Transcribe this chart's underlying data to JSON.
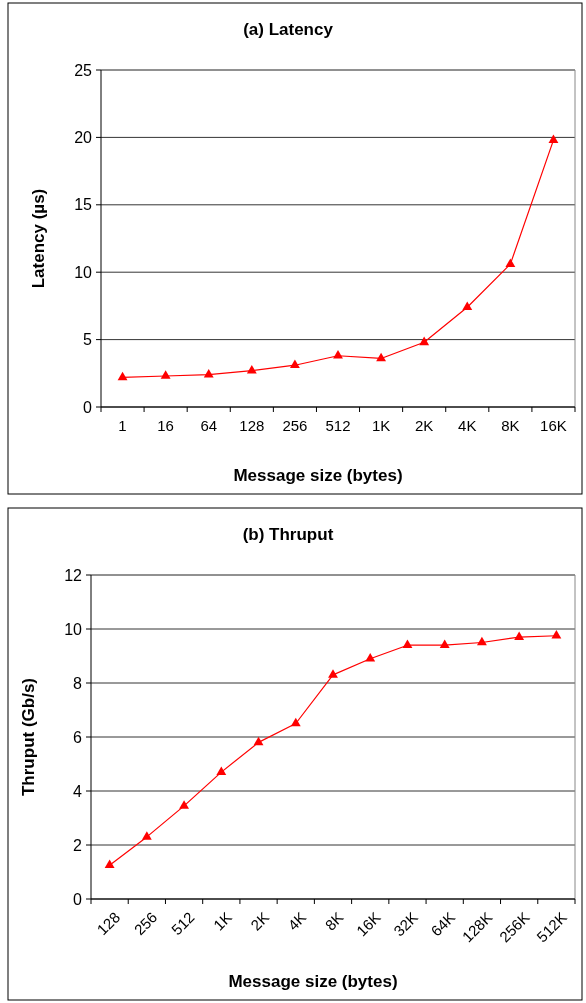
{
  "chart_data": [
    {
      "type": "line",
      "title": "(a)  Latency",
      "xlabel": "Message size (bytes)",
      "ylabel": "Latency (µs)",
      "categories": [
        "1",
        "16",
        "64",
        "128",
        "256",
        "512",
        "1K",
        "2K",
        "4K",
        "8K",
        "16K"
      ],
      "series": [
        {
          "color": "#ff0000",
          "values": [
            2.2,
            2.3,
            2.4,
            2.7,
            3.1,
            3.8,
            3.6,
            4.8,
            7.4,
            10.6,
            19.8
          ]
        }
      ],
      "ylim": [
        0,
        25
      ],
      "yticks": [
        0,
        5,
        10,
        15,
        20,
        25
      ],
      "grid": "y",
      "marker": "triangle",
      "line_style": "solid"
    },
    {
      "type": "line",
      "title": "(b)  Thruput",
      "xlabel": "Message size (bytes)",
      "ylabel": "Thruput (Gb/s)",
      "categories": [
        "128",
        "256",
        "512",
        "1K",
        "2K",
        "4K",
        "8K",
        "16K",
        "32K",
        "64K",
        "128K",
        "256K",
        "512K"
      ],
      "series": [
        {
          "color": "#ff0000",
          "values": [
            1.25,
            2.3,
            3.45,
            4.7,
            5.8,
            6.5,
            8.3,
            8.9,
            9.4,
            9.4,
            9.5,
            9.7,
            9.75
          ]
        }
      ],
      "ylim": [
        0,
        12
      ],
      "yticks": [
        0,
        2,
        4,
        6,
        8,
        10,
        12
      ],
      "grid": "y",
      "marker": "triangle",
      "line_style": "solid"
    }
  ]
}
